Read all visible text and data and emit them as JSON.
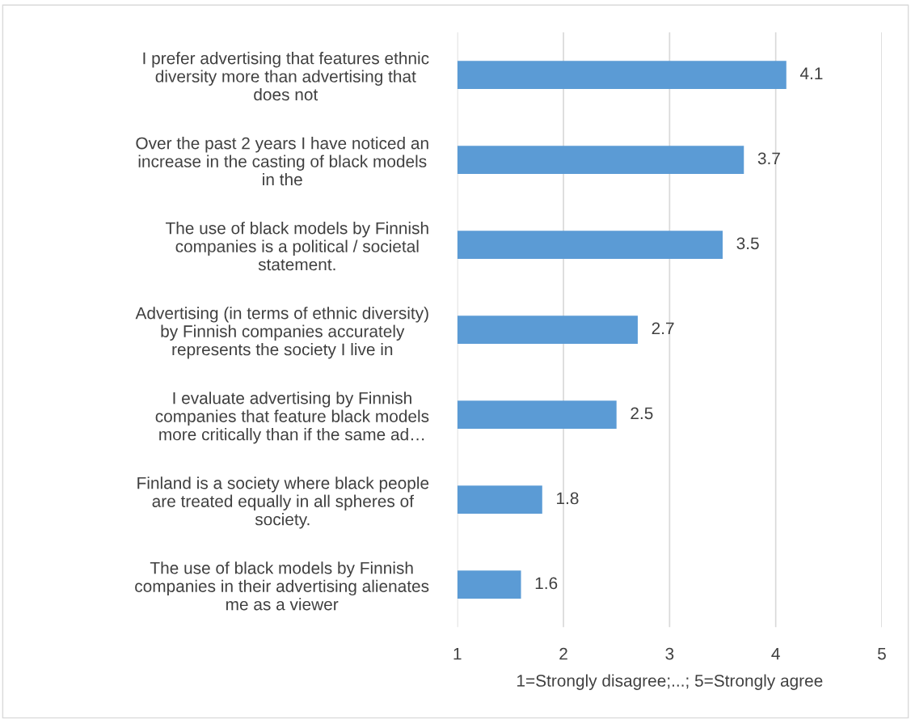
{
  "chart_data": {
    "type": "bar",
    "orientation": "horizontal",
    "categories": [
      "I prefer advertising that features ethnic\ndiversity more than advertising that\ndoes not",
      "Over the past 2 years I have noticed an\nincrease in the casting of black models\nin the",
      "The use of black models by Finnish\ncompanies is a political / societal\nstatement.",
      "Advertising (in terms of ethnic diversity)\nby Finnish companies accurately\nrepresents the society I live in",
      "I evaluate advertising by Finnish\ncompanies that feature black models\nmore critically than if the same ad…",
      "Finland is a society where black people\nare treated equally in all spheres of\nsociety.",
      "The use of black models by Finnish\ncompanies in their advertising alienates\nme as a viewer"
    ],
    "values": [
      4.1,
      3.7,
      3.5,
      2.7,
      2.5,
      1.8,
      1.6
    ],
    "color": "#5b9bd5",
    "xlabel": "1=Strongly disagree;...; 5=Strongly agree",
    "xlim": [
      1,
      5
    ],
    "xticks": [
      1,
      2,
      3,
      4,
      5
    ],
    "grid": "x",
    "data_labels": true
  }
}
